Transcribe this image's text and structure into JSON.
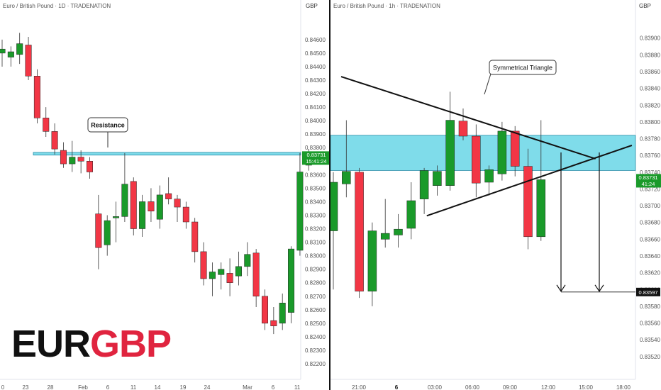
{
  "left_panel": {
    "header": "Euro / British Pound · 1D · TRADENATION",
    "currency": "GBP",
    "annotation": "Resistance",
    "price_tag": "0.83731",
    "countdown": "15:41:24",
    "brand_part1": "EUR",
    "brand_part2": "GBP"
  },
  "right_panel": {
    "header": "Euro / British Pound · 1h · TRADENATION",
    "currency": "GBP",
    "annotation": "Symmetrical Triangle",
    "price_tag": "0.83731",
    "countdown": "41:24",
    "target_tag": "0.83597"
  },
  "colors": {
    "up": "#1a9a2a",
    "down": "#f23645",
    "zone_fill": "#7fdcea",
    "zone_border": "#2a8ea8",
    "axis_text": "#555555",
    "target_tag_bg": "#111111"
  },
  "chart_data": [
    {
      "type": "candlestick",
      "title": "Euro / British Pound · 1D · TRADENATION",
      "timeframe": "1D",
      "x_tick_labels": [
        "0",
        "23",
        "28",
        "Feb",
        "6",
        "11",
        "14",
        "19",
        "24",
        "Mar",
        "6",
        "11"
      ],
      "y_tick_labels": [
        "0.84600",
        "0.84500",
        "0.84400",
        "0.84300",
        "0.84200",
        "0.84100",
        "0.84000",
        "0.83900",
        "0.83800",
        "0.83700",
        "0.83600",
        "0.83500",
        "0.83400",
        "0.83300",
        "0.83200",
        "0.83100",
        "0.83000",
        "0.82900",
        "0.82800",
        "0.82700",
        "0.82600",
        "0.82500",
        "0.82400",
        "0.82300",
        "0.82200"
      ],
      "ylim": [
        0.822,
        0.8472
      ],
      "resistance_zone": [
        0.83745,
        0.83765
      ],
      "candles": [
        {
          "o": 0.845,
          "h": 0.846,
          "l": 0.844,
          "c": 0.8453
        },
        {
          "o": 0.8447,
          "h": 0.8455,
          "l": 0.844,
          "c": 0.8451
        },
        {
          "o": 0.8449,
          "h": 0.8465,
          "l": 0.8442,
          "c": 0.8457
        },
        {
          "o": 0.8456,
          "h": 0.8462,
          "l": 0.843,
          "c": 0.8433
        },
        {
          "o": 0.8433,
          "h": 0.8438,
          "l": 0.8398,
          "c": 0.8402
        },
        {
          "o": 0.8402,
          "h": 0.841,
          "l": 0.8388,
          "c": 0.8392
        },
        {
          "o": 0.8392,
          "h": 0.8398,
          "l": 0.8375,
          "c": 0.8379
        },
        {
          "o": 0.8378,
          "h": 0.8384,
          "l": 0.8365,
          "c": 0.8368
        },
        {
          "o": 0.8368,
          "h": 0.8385,
          "l": 0.8362,
          "c": 0.8373
        },
        {
          "o": 0.8373,
          "h": 0.8378,
          "l": 0.8361,
          "c": 0.837
        },
        {
          "o": 0.837,
          "h": 0.8373,
          "l": 0.8357,
          "c": 0.8362
        },
        {
          "o": 0.8331,
          "h": 0.8345,
          "l": 0.829,
          "c": 0.8306
        },
        {
          "o": 0.8308,
          "h": 0.833,
          "l": 0.83,
          "c": 0.8326
        },
        {
          "o": 0.8328,
          "h": 0.834,
          "l": 0.831,
          "c": 0.8329
        },
        {
          "o": 0.8329,
          "h": 0.8376,
          "l": 0.8325,
          "c": 0.8353
        },
        {
          "o": 0.8355,
          "h": 0.8358,
          "l": 0.8315,
          "c": 0.832
        },
        {
          "o": 0.832,
          "h": 0.8345,
          "l": 0.8314,
          "c": 0.834
        },
        {
          "o": 0.834,
          "h": 0.835,
          "l": 0.8325,
          "c": 0.8333
        },
        {
          "o": 0.8327,
          "h": 0.8352,
          "l": 0.832,
          "c": 0.8345
        },
        {
          "o": 0.8346,
          "h": 0.8358,
          "l": 0.8338,
          "c": 0.8342
        },
        {
          "o": 0.8342,
          "h": 0.8345,
          "l": 0.8325,
          "c": 0.8336
        },
        {
          "o": 0.8336,
          "h": 0.834,
          "l": 0.832,
          "c": 0.8325
        },
        {
          "o": 0.8325,
          "h": 0.8328,
          "l": 0.8295,
          "c": 0.8303
        },
        {
          "o": 0.8303,
          "h": 0.831,
          "l": 0.8278,
          "c": 0.8283
        },
        {
          "o": 0.8283,
          "h": 0.8295,
          "l": 0.827,
          "c": 0.8288
        },
        {
          "o": 0.8286,
          "h": 0.8295,
          "l": 0.8275,
          "c": 0.829
        },
        {
          "o": 0.8287,
          "h": 0.8298,
          "l": 0.827,
          "c": 0.828
        },
        {
          "o": 0.8285,
          "h": 0.8303,
          "l": 0.8278,
          "c": 0.8292
        },
        {
          "o": 0.8292,
          "h": 0.831,
          "l": 0.8285,
          "c": 0.8301
        },
        {
          "o": 0.8302,
          "h": 0.8305,
          "l": 0.8262,
          "c": 0.827
        },
        {
          "o": 0.827,
          "h": 0.8275,
          "l": 0.8245,
          "c": 0.825
        },
        {
          "o": 0.8252,
          "h": 0.8262,
          "l": 0.8242,
          "c": 0.8248
        },
        {
          "o": 0.825,
          "h": 0.8272,
          "l": 0.8245,
          "c": 0.8265
        },
        {
          "o": 0.8258,
          "h": 0.8307,
          "l": 0.825,
          "c": 0.8305
        },
        {
          "o": 0.8304,
          "h": 0.8376,
          "l": 0.83,
          "c": 0.8362
        },
        {
          "o": 0.8367,
          "h": 0.8379,
          "l": 0.8363,
          "c": 0.83731
        }
      ]
    },
    {
      "type": "candlestick",
      "title": "Euro / British Pound · 1h · TRADENATION",
      "timeframe": "1h",
      "x_tick_labels": [
        "21:00",
        "6",
        "03:00",
        "06:00",
        "09:00",
        "12:00",
        "15:00",
        "18:00"
      ],
      "y_tick_labels": [
        "0.83900",
        "0.83880",
        "0.83860",
        "0.83840",
        "0.83820",
        "0.83800",
        "0.83780",
        "0.83760",
        "0.83740",
        "0.83720",
        "0.83700",
        "0.83680",
        "0.83660",
        "0.83640",
        "0.83620",
        "0.83600",
        "0.83580",
        "0.83560",
        "0.83540",
        "0.83520"
      ],
      "ylim": [
        0.83508,
        0.83915
      ],
      "zone": [
        0.83742,
        0.83784
      ],
      "triangle_upper": [
        [
          0.6,
          0.83854
        ],
        [
          20.2,
          0.83756
        ]
      ],
      "triangle_lower": [
        [
          7.2,
          0.83688
        ],
        [
          23.0,
          0.83772
        ]
      ],
      "projection_levels": [
        0.83597
      ],
      "candles": [
        {
          "o": 0.8367,
          "h": 0.8374,
          "l": 0.836,
          "c": 0.83728
        },
        {
          "o": 0.83726,
          "h": 0.83802,
          "l": 0.8371,
          "c": 0.83741
        },
        {
          "o": 0.8374,
          "h": 0.83745,
          "l": 0.8359,
          "c": 0.83598
        },
        {
          "o": 0.83598,
          "h": 0.8368,
          "l": 0.8358,
          "c": 0.8367
        },
        {
          "o": 0.8366,
          "h": 0.83708,
          "l": 0.8365,
          "c": 0.83667
        },
        {
          "o": 0.83665,
          "h": 0.8369,
          "l": 0.8365,
          "c": 0.83672
        },
        {
          "o": 0.83673,
          "h": 0.83728,
          "l": 0.8366,
          "c": 0.83706
        },
        {
          "o": 0.83708,
          "h": 0.83745,
          "l": 0.8369,
          "c": 0.83742
        },
        {
          "o": 0.83724,
          "h": 0.83748,
          "l": 0.83712,
          "c": 0.83741
        },
        {
          "o": 0.83724,
          "h": 0.83836,
          "l": 0.83718,
          "c": 0.83802
        },
        {
          "o": 0.83801,
          "h": 0.83816,
          "l": 0.83778,
          "c": 0.83783
        },
        {
          "o": 0.83783,
          "h": 0.83797,
          "l": 0.8371,
          "c": 0.83727
        },
        {
          "o": 0.83728,
          "h": 0.83748,
          "l": 0.83712,
          "c": 0.83743
        },
        {
          "o": 0.83738,
          "h": 0.838,
          "l": 0.8373,
          "c": 0.83789
        },
        {
          "o": 0.83789,
          "h": 0.83795,
          "l": 0.83735,
          "c": 0.83747
        },
        {
          "o": 0.83747,
          "h": 0.83768,
          "l": 0.83648,
          "c": 0.83663
        },
        {
          "o": 0.83663,
          "h": 0.83802,
          "l": 0.83658,
          "c": 0.83731
        }
      ]
    }
  ]
}
